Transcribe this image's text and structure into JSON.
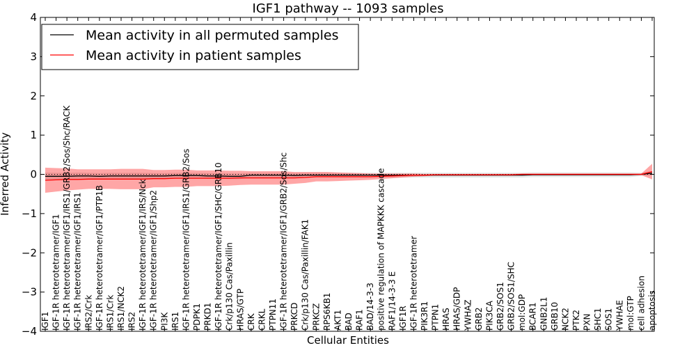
{
  "chart_data": {
    "type": "line",
    "title": "IGF1 pathway -- 1093 samples",
    "xlabel": "Cellular Entities",
    "ylabel": "Inferred Activity",
    "ylim": [
      -4,
      4
    ],
    "yticks": [
      -4,
      -3,
      -2,
      -1,
      0,
      1,
      2,
      3,
      4
    ],
    "ytick_labels": [
      "−4",
      "−3",
      "−2",
      "−1",
      "0",
      "1",
      "2",
      "3",
      "4"
    ],
    "reference_line": 0,
    "legend": {
      "location": "top-left",
      "entries": [
        {
          "label": "Mean activity in all permuted samples",
          "color": "#000000"
        },
        {
          "label": "Mean activity in patient samples",
          "color": "#ff0000"
        }
      ]
    },
    "categories": [
      "IGF1",
      "IGF-1R heterotetramer/IGF1",
      "IGF-1R heterotetramer/IGF1/IRS1/GRB2/Sos/Shc/RACK",
      "IGF-1R heterotetramer/IGF1/IRS1",
      "IRS2/Crk",
      "IGF-1R heterotetramer/IGF1/PTP1B",
      "IRS1/Crk",
      "IRS1/NCK2",
      "IRS2",
      "IGF-1R heterotetramer/IGF1/IRS/Nck",
      "IGF-1R heterotetramer/IGF1/Shp2",
      "PI3K",
      "IRS1",
      "IGF-1R heterotetramer/IGF1/IRS1/GRB2/Sos",
      "PDPK1",
      "PRKD1",
      "IGF-1R heterotetramer/IGF1/SHC/GRB10",
      "Crk/p130 Cas/Paxillin",
      "HRAS/GTP",
      "CRK",
      "CRKL",
      "PTPN11",
      "IGF-1R heterotetramer/IGF1/GRB2/Sos/Shc",
      "PRKCD",
      "Crk/p130 Cas/Paxillin/FAK1",
      "PRKCZ",
      "RPS6KB1",
      "AKT1",
      "BAD",
      "RAF1",
      "BAD/14-3-3",
      "positive regulation of MAPKKK cascade",
      "RAF1/14-3-3 E",
      "IGF1R",
      "IGF-1R heterotetramer",
      "PIK3R1",
      "PTPN1",
      "HRAS",
      "HRAS/GDP",
      "YWHAZ",
      "GRB2",
      "PIK3CA",
      "GRB2/SOS1",
      "GRB2/SOS1/SHC",
      "mol:GDP",
      "BCAR1",
      "GNB2L1",
      "GRB10",
      "NCK2",
      "PTK2",
      "PXN",
      "SHC1",
      "SOS1",
      "YWHAE",
      "mol:GTP",
      "cell adhesion",
      "apoptosis"
    ],
    "series": [
      {
        "name": "Mean activity in all permuted samples",
        "color": "#000000",
        "values": [
          -0.05,
          -0.05,
          -0.05,
          -0.04,
          -0.04,
          -0.05,
          -0.04,
          -0.04,
          -0.04,
          -0.04,
          -0.04,
          -0.04,
          -0.03,
          -0.03,
          -0.03,
          -0.04,
          -0.04,
          -0.05,
          -0.05,
          -0.02,
          -0.02,
          -0.02,
          -0.02,
          -0.03,
          -0.02,
          -0.02,
          -0.02,
          -0.02,
          -0.02,
          -0.02,
          -0.02,
          -0.02,
          -0.02,
          -0.02,
          -0.02,
          -0.02,
          -0.02,
          -0.02,
          -0.02,
          -0.02,
          -0.02,
          -0.02,
          -0.02,
          -0.02,
          -0.02,
          -0.01,
          -0.01,
          -0.01,
          -0.01,
          -0.01,
          -0.01,
          -0.01,
          -0.01,
          -0.01,
          -0.01,
          0.0,
          0.03
        ],
        "spread": [
          0.1,
          0.09,
          0.09,
          0.09,
          0.08,
          0.08,
          0.08,
          0.08,
          0.08,
          0.08,
          0.07,
          0.07,
          0.07,
          0.07,
          0.07,
          0.07,
          0.07,
          0.07,
          0.07,
          0.06,
          0.06,
          0.06,
          0.06,
          0.06,
          0.06,
          0.06,
          0.06,
          0.06,
          0.06,
          0.06,
          0.06,
          0.06,
          0.06,
          0.06,
          0.06,
          0.06,
          0.06,
          0.06,
          0.06,
          0.06,
          0.06,
          0.06,
          0.06,
          0.06,
          0.06,
          0.06,
          0.06,
          0.06,
          0.06,
          0.06,
          0.06,
          0.06,
          0.06,
          0.06,
          0.06,
          0.04,
          0.05
        ]
      },
      {
        "name": "Mean activity in patient samples",
        "color": "#ff0000",
        "values": [
          -0.15,
          -0.14,
          -0.13,
          -0.13,
          -0.12,
          -0.12,
          -0.12,
          -0.12,
          -0.12,
          -0.12,
          -0.11,
          -0.11,
          -0.1,
          -0.1,
          -0.1,
          -0.1,
          -0.1,
          -0.1,
          -0.09,
          -0.09,
          -0.09,
          -0.09,
          -0.09,
          -0.09,
          -0.08,
          -0.06,
          -0.06,
          -0.06,
          -0.06,
          -0.06,
          -0.06,
          -0.05,
          -0.04,
          -0.03,
          -0.02,
          -0.02,
          -0.01,
          -0.01,
          -0.01,
          -0.01,
          -0.01,
          -0.01,
          -0.01,
          -0.01,
          0.0,
          0.0,
          0.0,
          0.0,
          0.0,
          0.0,
          0.0,
          0.0,
          0.0,
          0.0,
          0.0,
          0.0,
          0.07
        ],
        "spread": [
          0.32,
          0.3,
          0.28,
          0.26,
          0.25,
          0.25,
          0.25,
          0.26,
          0.26,
          0.26,
          0.22,
          0.22,
          0.22,
          0.22,
          0.2,
          0.2,
          0.2,
          0.19,
          0.18,
          0.17,
          0.17,
          0.17,
          0.17,
          0.15,
          0.14,
          0.12,
          0.12,
          0.11,
          0.1,
          0.09,
          0.08,
          0.07,
          0.06,
          0.05,
          0.04,
          0.03,
          0.02,
          0.02,
          0.02,
          0.02,
          0.02,
          0.02,
          0.02,
          0.02,
          0.02,
          0.02,
          0.02,
          0.02,
          0.02,
          0.02,
          0.02,
          0.02,
          0.02,
          0.02,
          0.02,
          0.02,
          0.2
        ]
      }
    ]
  }
}
